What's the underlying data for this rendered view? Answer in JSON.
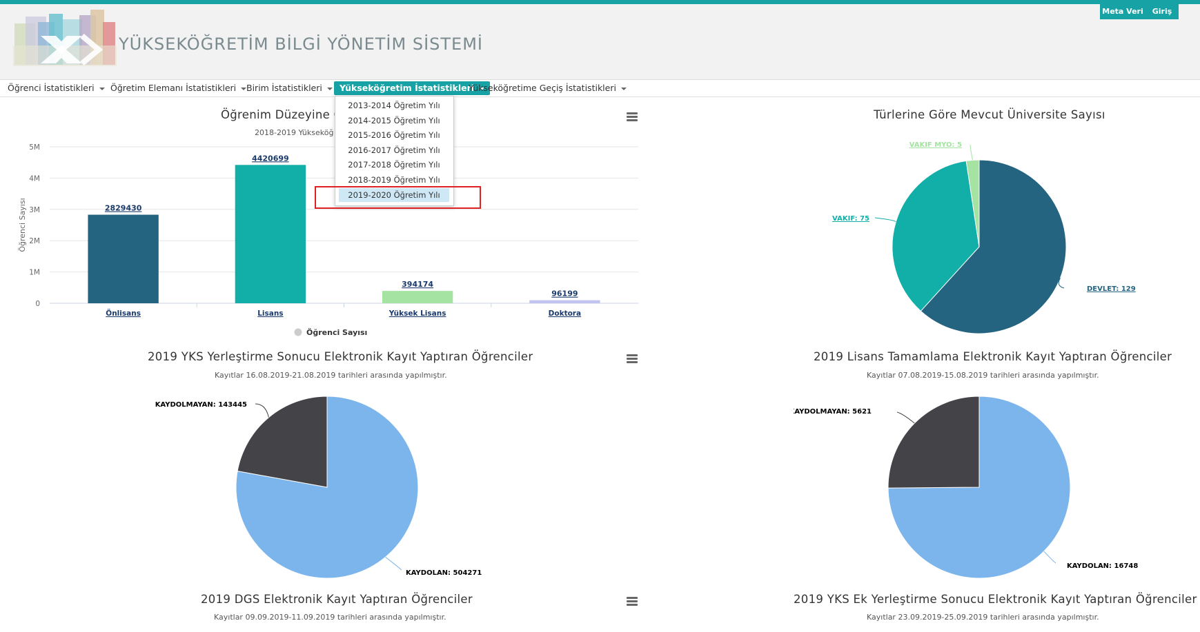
{
  "header": {
    "site_title": "YÜKSEKÖĞRETİM BİLGİ YÖNETİM SİSTEMİ",
    "meta_label": "Meta Veri",
    "login_label": "Giriş"
  },
  "nav": {
    "items": [
      {
        "label": "Öğrenci İstatistikleri"
      },
      {
        "label": "Öğretim Elemanı İstatistikleri"
      },
      {
        "label": "Birim İstatistikleri"
      },
      {
        "label": "Yükseköğretim İstatistikleri"
      },
      {
        "label": "Yükseköğretime Geçiş İstatistikleri"
      }
    ],
    "active_index": 3
  },
  "dropdown": {
    "items": [
      {
        "label": "2013-2014 Öğretim Yılı"
      },
      {
        "label": "2014-2015 Öğretim Yılı"
      },
      {
        "label": "2015-2016 Öğretim Yılı"
      },
      {
        "label": "2016-2017 Öğretim Yılı"
      },
      {
        "label": "2017-2018 Öğretim Yılı"
      },
      {
        "label": "2018-2019 Öğretim Yılı"
      },
      {
        "label": "2019-2020 Öğretim Yılı"
      }
    ],
    "selected_index": 6
  },
  "charts": {
    "bar": {
      "title": "Öğrenim Düzeyine G",
      "subtitle": "2018-2019 Yükseköğ"
    },
    "uni": {
      "title": "Türlerine Göre Mevcut Üniversite Sayısı"
    },
    "yks": {
      "title": "2019 YKS Yerleştirme Sonucu Elektronik Kayıt Yaptıran Öğrenciler",
      "subtitle": "Kayıtlar 16.08.2019-21.08.2019 tarihleri arasında yapılmıştır."
    },
    "lisans": {
      "title": "2019 Lisans Tamamlama Elektronik Kayıt Yaptıran Öğrenciler",
      "subtitle": "Kayıtlar 07.08.2019-15.08.2019 tarihleri arasında yapılmıştır."
    },
    "dgs": {
      "title": "2019 DGS Elektronik Kayıt Yaptıran Öğrenciler",
      "subtitle": "Kayıtlar 09.09.2019-11.09.2019 tarihleri arasında yapılmıştır."
    },
    "ek": {
      "title": "2019 YKS Ek Yerleştirme Sonucu Elektronik Kayıt Yaptıran Öğrenciler",
      "subtitle": "Kayıtlar 23.09.2019-25.09.2019 tarihleri arasında yapılmıştır."
    }
  },
  "chart_data": [
    {
      "type": "bar",
      "title": "Öğrenim Düzeyine G",
      "subtitle": "2018-2019 Yükseköğ",
      "ylabel": "Öğrenci Sayısı",
      "categories": [
        "Önlisans",
        "Lisans",
        "Yüksek Lisans",
        "Doktora"
      ],
      "values": [
        2829430,
        4420699,
        394174,
        96199
      ],
      "colors": [
        "#246480",
        "#12aea8",
        "#a4e3a2",
        "#c1c4ee"
      ],
      "ylim": [
        0,
        5000000
      ],
      "yticks": [
        "0",
        "1M",
        "2M",
        "3M",
        "4M",
        "5M"
      ],
      "legend": "Öğrenci Sayısı",
      "legend_position": "bottom",
      "grid": true
    },
    {
      "type": "pie",
      "title": "Türlerine Göre Mevcut Üniversite Sayısı",
      "labels": [
        "DEVLET",
        "VAKIF",
        "VAKIF MYO"
      ],
      "values": [
        129,
        75,
        5
      ],
      "colors": [
        "#246480",
        "#12aea8",
        "#a4e3a2"
      ],
      "label_colors": [
        "#246480",
        "#12aea8",
        "#a4e3a2"
      ]
    },
    {
      "type": "pie",
      "title": "2019 YKS Yerleştirme Sonucu Elektronik Kayıt Yaptıran Öğrenciler",
      "labels": [
        "KAYDOLAN",
        "KAYDOLMAYAN"
      ],
      "values": [
        504271,
        143445
      ],
      "colors": [
        "#7cb5ec",
        "#434348"
      ]
    },
    {
      "type": "pie",
      "title": "2019 Lisans Tamamlama Elektronik Kayıt Yaptıran Öğrenciler",
      "labels": [
        "KAYDOLAN",
        "KAYDOLMAYAN"
      ],
      "values": [
        16748,
        5621
      ],
      "colors": [
        "#7cb5ec",
        "#434348"
      ]
    }
  ]
}
